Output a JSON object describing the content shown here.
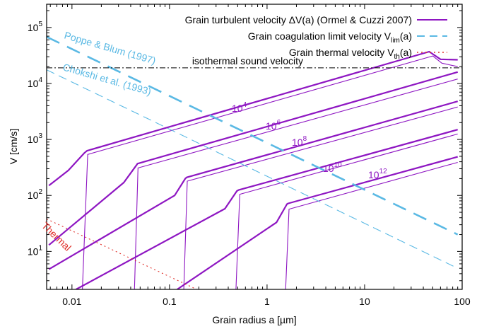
{
  "chart_data": {
    "type": "line",
    "xlabel": "Grain radius a [µm]",
    "ylabel": "V [cm/s]",
    "xscale": "log",
    "yscale": "log",
    "xlim": [
      0.0055,
      100
    ],
    "ylim": [
      2.1,
      260000
    ],
    "grid": false,
    "legend_position": "top-right",
    "x_ticks": [
      {
        "value": 0.01,
        "label": "0.01"
      },
      {
        "value": 0.1,
        "label": "0.1"
      },
      {
        "value": 1,
        "label": "1"
      },
      {
        "value": 10,
        "label": "10"
      },
      {
        "value": 100,
        "label": "100"
      }
    ],
    "y_ticks": [
      {
        "value": 10,
        "label": "10",
        "sup": "1"
      },
      {
        "value": 100,
        "label": "10",
        "sup": "2"
      },
      {
        "value": 1000,
        "label": "10",
        "sup": "3"
      },
      {
        "value": 10000,
        "label": "10",
        "sup": "4"
      },
      {
        "value": 100000,
        "label": "10",
        "sup": "5"
      }
    ],
    "legend": [
      {
        "text": "Grain turbulent velocity ΔV(a) (Ormel & Cuzzi 2007)",
        "color": "#8e16c2",
        "style": "solid"
      },
      {
        "text": "Grain coagulation limit velocity V",
        "sub": "lim",
        "tail": "(a)",
        "color": "#5ab9e4",
        "style": "dashed"
      },
      {
        "text": "Grain thermal velocity V",
        "sub": "th",
        "tail": "(a)",
        "color": "#e0302a",
        "style": "dotted"
      }
    ],
    "reference_line": {
      "label": "isothermal sound velocity",
      "y": 19000,
      "color": "#000000",
      "style": "dash-dot"
    },
    "series": [
      {
        "name": "Grain turbulent velocity (upper) 10^4",
        "color": "#8e16c2",
        "width": "thick",
        "x": [
          0.0058,
          0.0092,
          0.0135,
          0.0143,
          46,
          60,
          90
        ],
        "y": [
          150,
          280,
          580,
          630,
          37000,
          27000,
          26500
        ]
      },
      {
        "name": "Grain turbulent velocity (lower) 10^4",
        "color": "#8e16c2",
        "width": "thin",
        "x": [
          0.0128,
          0.0145,
          50,
          62,
          90
        ],
        "y": [
          2.1,
          540,
          31000,
          23000,
          20000
        ]
      },
      {
        "name": "Grain turbulent velocity (upper) 10^6",
        "color": "#8e16c2",
        "width": "thick",
        "x": [
          0.0058,
          0.034,
          0.046,
          0.047,
          90
        ],
        "y": [
          13,
          170,
          350,
          370,
          16000
        ]
      },
      {
        "name": "Grain turbulent velocity (lower) 10^6",
        "color": "#8e16c2",
        "width": "thin",
        "x": [
          0.0437,
          0.0475,
          90
        ],
        "y": [
          2.1,
          310,
          12000
        ]
      },
      {
        "name": "Grain turbulent velocity (upper) 10^8",
        "color": "#8e16c2",
        "width": "thick",
        "x": [
          0.0058,
          0.113,
          0.145,
          0.15,
          90
        ],
        "y": [
          4.8,
          100,
          200,
          210,
          4800
        ]
      },
      {
        "name": "Grain turbulent velocity (lower) 10^8",
        "color": "#8e16c2",
        "width": "thin",
        "x": [
          0.14,
          0.152,
          90
        ],
        "y": [
          2.1,
          180,
          3800
        ]
      },
      {
        "name": "Grain turbulent velocity (upper) 10^10",
        "color": "#8e16c2",
        "width": "thick",
        "x": [
          0.011,
          0.37,
          0.49,
          0.51,
          90
        ],
        "y": [
          2.1,
          58,
          120,
          125,
          1500
        ]
      },
      {
        "name": "Grain turbulent velocity (lower) 10^10",
        "color": "#8e16c2",
        "width": "thin",
        "x": [
          0.48,
          0.525,
          90
        ],
        "y": [
          2.1,
          105,
          1250
        ]
      },
      {
        "name": "Grain turbulent velocity (upper) 10^12",
        "color": "#8e16c2",
        "width": "thick",
        "x": [
          0.12,
          1.25,
          1.6,
          1.65,
          90
        ],
        "y": [
          2.1,
          33,
          70,
          72,
          490
        ]
      },
      {
        "name": "Grain turbulent velocity (lower) 10^12",
        "color": "#8e16c2",
        "width": "thin",
        "x": [
          1.55,
          1.68,
          90
        ],
        "y": [
          2.1,
          57,
          390
        ]
      },
      {
        "name": "Grain coagulation limit velocity (Poppe & Blum 1997)",
        "color": "#5ab9e4",
        "width": "thick",
        "style": "dashed",
        "x": [
          0.0055,
          90
        ],
        "y": [
          68000,
          20
        ]
      },
      {
        "name": "Grain coagulation limit velocity (Chokshi et al. 1993)",
        "color": "#5ab9e4",
        "width": "thin",
        "style": "dashed",
        "x": [
          0.0055,
          90
        ],
        "y": [
          17500,
          5
        ]
      },
      {
        "name": "Grain thermal velocity",
        "color": "#e0302a",
        "width": "thin",
        "style": "dotted",
        "x": [
          0.0055,
          0.19
        ],
        "y": [
          38,
          2.1
        ]
      }
    ],
    "annotations": [
      {
        "text": "Poppe & Blum (1997)",
        "color": "#5ab9e4"
      },
      {
        "text": "Chokshi et al. (1993)",
        "color": "#5ab9e4"
      },
      {
        "text": "Thermal",
        "color": "#e0302a"
      },
      {
        "text": "10",
        "sup": "4",
        "color": "#8e16c2"
      },
      {
        "text": "10",
        "sup": "6",
        "color": "#8e16c2"
      },
      {
        "text": "10",
        "sup": "8",
        "color": "#8e16c2"
      },
      {
        "text": "10",
        "sup": "10",
        "color": "#8e16c2"
      },
      {
        "text": "10",
        "sup": "12",
        "color": "#8e16c2"
      }
    ]
  }
}
